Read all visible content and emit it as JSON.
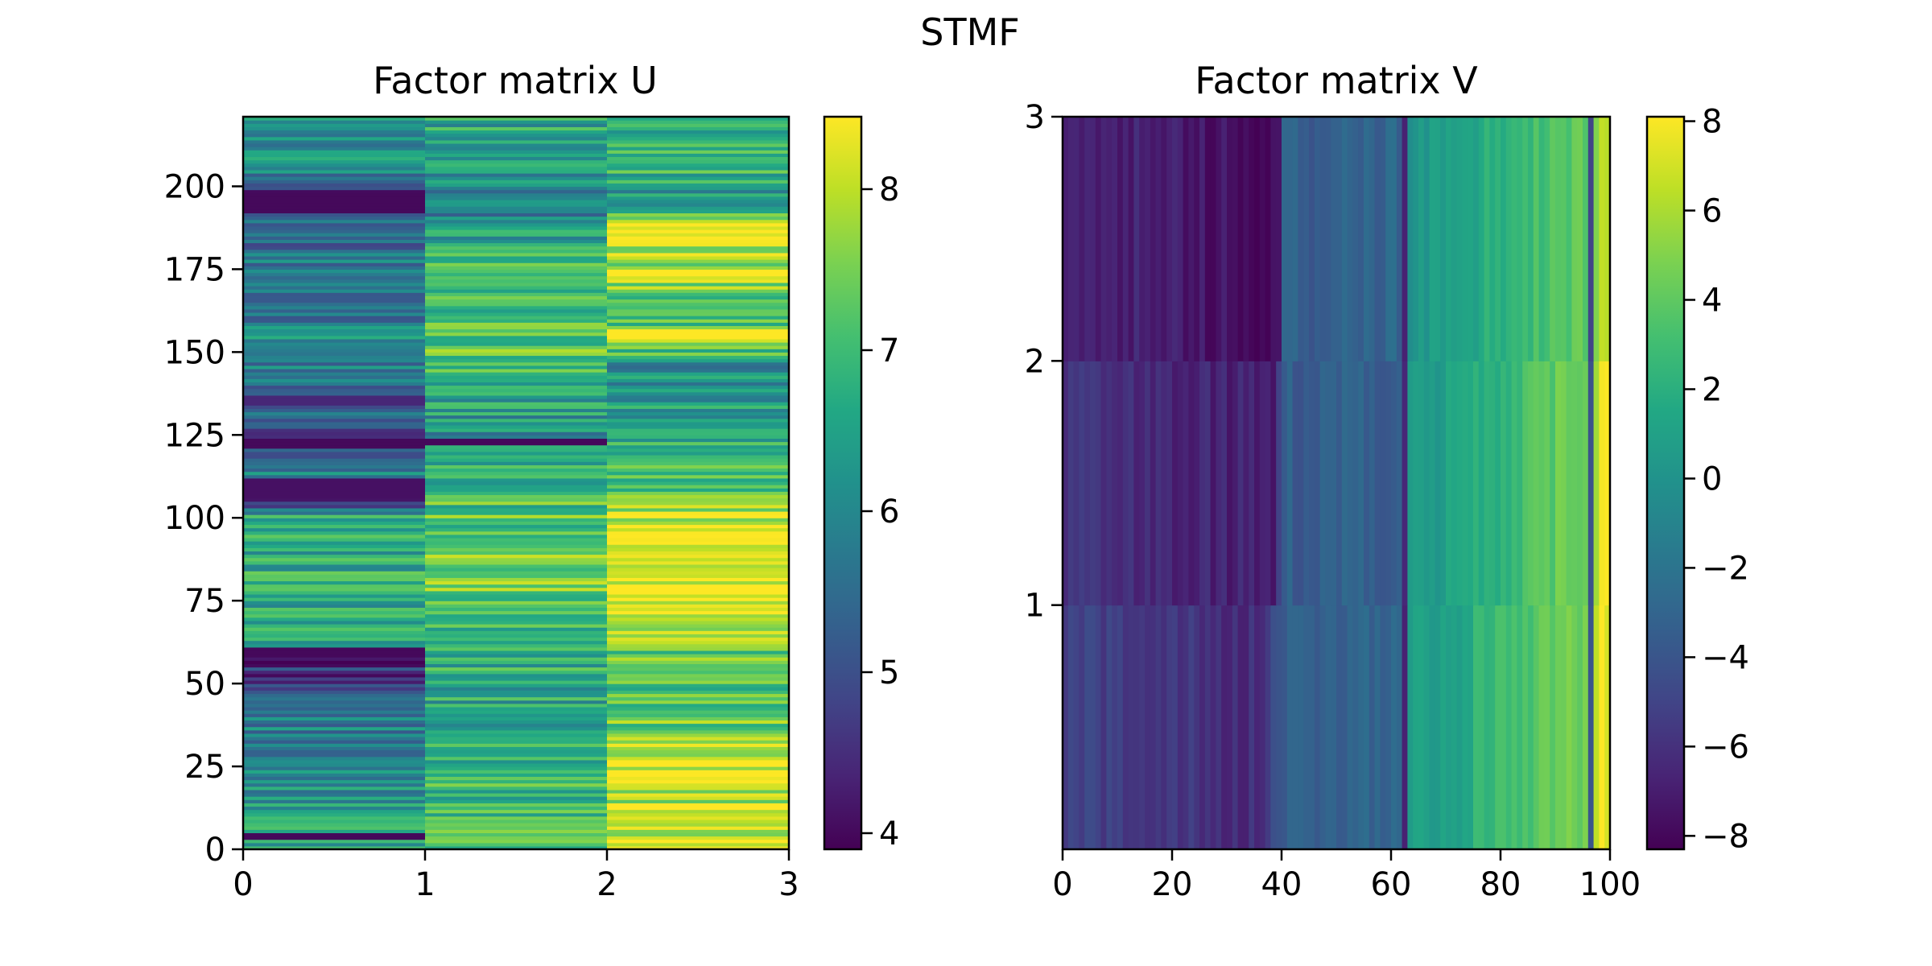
{
  "figure": {
    "suptitle": "STMF"
  },
  "chart_data": [
    {
      "type": "heatmap",
      "title": "Factor matrix U",
      "xlabel": "",
      "ylabel": "",
      "xlim": [
        0,
        3
      ],
      "ylim": [
        0,
        221
      ],
      "x_ticks": [
        0,
        1,
        2,
        3
      ],
      "x_tick_labels": [
        "0",
        "1",
        "2",
        "3"
      ],
      "y_ticks": [
        0,
        25,
        50,
        75,
        100,
        125,
        150,
        175,
        200
      ],
      "y_tick_labels": [
        "0",
        "25",
        "50",
        "75",
        "100",
        "125",
        "150",
        "175",
        "200"
      ],
      "n_rows": 221,
      "n_cols": 3,
      "colormap": "viridis",
      "colorbar": {
        "vmin": 3.9,
        "vmax": 8.45,
        "ticks": [
          4,
          5,
          6,
          7,
          8
        ],
        "tick_labels": [
          "4",
          "5",
          "6",
          "7",
          "8"
        ]
      },
      "column_profiles": [
        {
          "column": 0,
          "base": [
            [
              0,
              6.6
            ],
            [
              20,
              6.1
            ],
            [
              40,
              5.8
            ],
            [
              58,
              4.2
            ],
            [
              62,
              6.6
            ],
            [
              80,
              6.7
            ],
            [
              100,
              6.6
            ],
            [
              105,
              4.3
            ],
            [
              112,
              6.1
            ],
            [
              120,
              5.0
            ],
            [
              125,
              4.6
            ],
            [
              135,
              5.6
            ],
            [
              150,
              6.0
            ],
            [
              155,
              6.6
            ],
            [
              160,
              5.7
            ],
            [
              175,
              5.8
            ],
            [
              190,
              5.3
            ],
            [
              193,
              4.2
            ],
            [
              198,
              4.5
            ],
            [
              205,
              6.1
            ],
            [
              221,
              6.3
            ]
          ],
          "dark_bands": [
            [
              3,
              5,
              4.0
            ],
            [
              58,
              61,
              4.0
            ],
            [
              106,
              112,
              4.1
            ],
            [
              121,
              124,
              4.0
            ],
            [
              134,
              137,
              4.4
            ],
            [
              192,
              198,
              4.0
            ]
          ]
        },
        {
          "column": 1,
          "base": [
            [
              0,
              7.2
            ],
            [
              20,
              6.9
            ],
            [
              40,
              6.5
            ],
            [
              60,
              6.8
            ],
            [
              80,
              7.5
            ],
            [
              100,
              7.2
            ],
            [
              120,
              6.6
            ],
            [
              125,
              6.2
            ],
            [
              140,
              6.6
            ],
            [
              150,
              7.4
            ],
            [
              160,
              7.0
            ],
            [
              180,
              6.8
            ],
            [
              195,
              5.7
            ],
            [
              200,
              6.0
            ],
            [
              210,
              6.5
            ],
            [
              221,
              6.6
            ]
          ],
          "dark_bands": [
            [
              122,
              124,
              4.0
            ]
          ]
        },
        {
          "column": 2,
          "base": [
            [
              0,
              8.2
            ],
            [
              30,
              7.8
            ],
            [
              45,
              7.0
            ],
            [
              60,
              7.4
            ],
            [
              70,
              8.4
            ],
            [
              85,
              8.3
            ],
            [
              100,
              7.9
            ],
            [
              110,
              7.1
            ],
            [
              125,
              6.6
            ],
            [
              145,
              6.1
            ],
            [
              155,
              8.2
            ],
            [
              160,
              6.8
            ],
            [
              170,
              7.6
            ],
            [
              180,
              8.1
            ],
            [
              190,
              8.0
            ],
            [
              195,
              6.0
            ],
            [
              205,
              7.0
            ],
            [
              210,
              7.2
            ],
            [
              221,
              6.7
            ]
          ],
          "dark_bands": []
        }
      ]
    },
    {
      "type": "heatmap",
      "title": "Factor matrix V",
      "xlabel": "",
      "ylabel": "",
      "xlim": [
        0,
        100
      ],
      "ylim": [
        0,
        3
      ],
      "x_ticks": [
        0,
        20,
        40,
        60,
        80,
        100
      ],
      "x_tick_labels": [
        "0",
        "20",
        "40",
        "60",
        "80",
        "100"
      ],
      "y_ticks": [
        1,
        2,
        3
      ],
      "y_tick_labels": [
        "1",
        "2",
        "3"
      ],
      "n_rows": 3,
      "n_cols": 100,
      "colormap": "viridis",
      "colorbar": {
        "vmin": -8.3,
        "vmax": 8.1,
        "ticks": [
          -8,
          -6,
          -4,
          -2,
          0,
          2,
          4,
          6,
          8
        ],
        "tick_labels": [
          "−8",
          "−6",
          "−4",
          "−2",
          "0",
          "2",
          "4",
          "6",
          "8"
        ]
      },
      "row_profiles": [
        {
          "row": 0,
          "base": [
            [
              0,
              -5.2
            ],
            [
              15,
              -5.6
            ],
            [
              25,
              -6.0
            ],
            [
              35,
              -6.3
            ],
            [
              40,
              -3.5
            ],
            [
              55,
              -3.0
            ],
            [
              62,
              -3.0
            ],
            [
              63,
              0.8
            ],
            [
              70,
              1.0
            ],
            [
              80,
              3.2
            ],
            [
              90,
              4.0
            ],
            [
              96,
              4.8
            ],
            [
              98,
              7.5
            ],
            [
              100,
              7.8
            ]
          ],
          "dark_bands": [
            [
              62,
              63,
              -6.8
            ],
            [
              96,
              97,
              -4.0
            ]
          ]
        },
        {
          "row": 1,
          "base": [
            [
              0,
              -5.8
            ],
            [
              15,
              -6.3
            ],
            [
              25,
              -6.6
            ],
            [
              38,
              -6.8
            ],
            [
              40,
              -3.5
            ],
            [
              55,
              -3.2
            ],
            [
              62,
              -3.2
            ],
            [
              63,
              0.5
            ],
            [
              70,
              1.0
            ],
            [
              80,
              2.6
            ],
            [
              90,
              4.2
            ],
            [
              96,
              5.0
            ],
            [
              98,
              7.8
            ],
            [
              100,
              8.0
            ]
          ],
          "dark_bands": [
            [
              62,
              63,
              -6.5
            ],
            [
              96,
              97,
              -4.2
            ]
          ]
        },
        {
          "row": 2,
          "base": [
            [
              0,
              -6.5
            ],
            [
              15,
              -6.8
            ],
            [
              25,
              -7.2
            ],
            [
              33,
              -7.8
            ],
            [
              39,
              -8.0
            ],
            [
              40,
              -3.5
            ],
            [
              55,
              -3.2
            ],
            [
              62,
              -3.0
            ],
            [
              63,
              0.2
            ],
            [
              70,
              0.6
            ],
            [
              80,
              2.3
            ],
            [
              90,
              3.5
            ],
            [
              96,
              4.0
            ],
            [
              98,
              6.5
            ],
            [
              100,
              7.0
            ]
          ],
          "dark_bands": [
            [
              62,
              63,
              -6.8
            ],
            [
              96,
              97,
              -5.0
            ]
          ]
        }
      ]
    }
  ]
}
